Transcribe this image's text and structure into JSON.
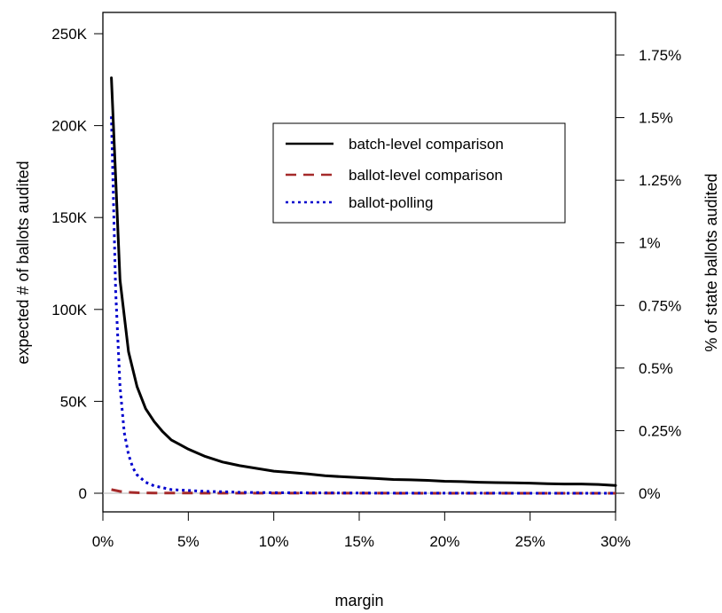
{
  "chart_data": {
    "type": "line",
    "xlabel": "margin",
    "ylabel_left": "expected # of ballots audited",
    "ylabel_right": "% of state ballots audited",
    "xlim": [
      0,
      30
    ],
    "ylim": [
      0,
      250000
    ],
    "ylim_right": [
      0,
      1.75
    ],
    "x_ticks": [
      {
        "v": 0,
        "label": "0%"
      },
      {
        "v": 5,
        "label": "5%"
      },
      {
        "v": 10,
        "label": "10%"
      },
      {
        "v": 15,
        "label": "15%"
      },
      {
        "v": 20,
        "label": "20%"
      },
      {
        "v": 25,
        "label": "25%"
      },
      {
        "v": 30,
        "label": "30%"
      }
    ],
    "y_ticks_left": [
      {
        "v": 0,
        "label": "0"
      },
      {
        "v": 50000,
        "label": "50K"
      },
      {
        "v": 100000,
        "label": "100K"
      },
      {
        "v": 150000,
        "label": "150K"
      },
      {
        "v": 200000,
        "label": "200K"
      },
      {
        "v": 250000,
        "label": "250K"
      }
    ],
    "y_ticks_right": [
      {
        "v": 0,
        "label": "0%"
      },
      {
        "v": 0.25,
        "label": "0.25%"
      },
      {
        "v": 0.5,
        "label": "0.5%"
      },
      {
        "v": 0.75,
        "label": "0.75%"
      },
      {
        "v": 1,
        "label": "1%"
      },
      {
        "v": 1.25,
        "label": "1.25%"
      },
      {
        "v": 1.5,
        "label": "1.5%"
      },
      {
        "v": 1.75,
        "label": "1.75%"
      }
    ],
    "legend_position": "top-right",
    "series": [
      {
        "name": "batch-level comparison",
        "color": "#000000",
        "style": "solid",
        "x": [
          0.5,
          1,
          1.5,
          2,
          2.5,
          3,
          3.5,
          4,
          4.5,
          5,
          6,
          7,
          8,
          9,
          10,
          11,
          12,
          13,
          14,
          15,
          16,
          17,
          18,
          19,
          20,
          21,
          22,
          23,
          24,
          25,
          26,
          27,
          28,
          29,
          30
        ],
        "y": [
          226000,
          116000,
          77000,
          58000,
          46000,
          39000,
          33500,
          29000,
          26500,
          24000,
          20000,
          17000,
          15000,
          13500,
          12000,
          11300,
          10500,
          9500,
          9000,
          8500,
          8000,
          7500,
          7300,
          7000,
          6500,
          6300,
          6000,
          5800,
          5700,
          5500,
          5200,
          5000,
          5000,
          4800,
          4200
        ]
      },
      {
        "name": "ballot-level comparison",
        "color": "#a52a2a",
        "style": "dashed",
        "x": [
          0.5,
          1,
          1.5,
          2,
          3,
          5,
          10,
          15,
          20,
          25,
          30
        ],
        "y": [
          2000,
          1000,
          500,
          300,
          150,
          80,
          40,
          30,
          20,
          15,
          10
        ]
      },
      {
        "name": "ballot-polling",
        "color": "#0000cd",
        "style": "dotted",
        "x": [
          0.5,
          0.75,
          1,
          1.25,
          1.5,
          1.75,
          2,
          2.5,
          3,
          3.5,
          4,
          5,
          6,
          7,
          8,
          10,
          15,
          20,
          30
        ],
        "y": [
          205000,
          110000,
          58000,
          33000,
          21000,
          14000,
          10000,
          6000,
          4000,
          3000,
          2000,
          1500,
          1000,
          800,
          500,
          300,
          100,
          50,
          20
        ]
      }
    ]
  }
}
